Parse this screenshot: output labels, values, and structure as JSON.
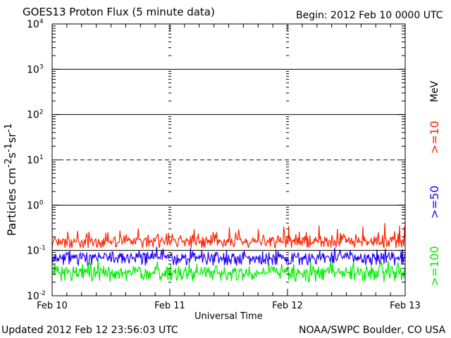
{
  "header": {
    "title": "GOES13 Proton Flux (5 minute data)",
    "begin": "Begin: 2012 Feb 10 0000 UTC"
  },
  "footer": {
    "updated": "Updated 2012 Feb 12 23:56:03 UTC",
    "credit": "NOAA/SWPC Boulder, CO USA"
  },
  "legend": {
    "unit": "MeV",
    "items": [
      {
        "label": ">=10",
        "color": "#ff2200"
      },
      {
        "label": ">=50",
        "color": "#2200ff"
      },
      {
        "label": ">=100",
        "color": "#00ee00"
      }
    ]
  },
  "chart_data": {
    "type": "line",
    "title": "GOES13 Proton Flux (5 minute data)",
    "xlabel": "Universal Time",
    "ylabel": "Particles cm⁻²s⁻¹sr⁻¹",
    "y_scale": "log",
    "ylim": [
      0.01,
      10000
    ],
    "y_ticks": [
      {
        "value": 0.01,
        "base": "10",
        "exp": "-2"
      },
      {
        "value": 0.1,
        "base": "10",
        "exp": "-1"
      },
      {
        "value": 1,
        "base": "10",
        "exp": "0"
      },
      {
        "value": 10,
        "base": "10",
        "exp": "1"
      },
      {
        "value": 100,
        "base": "10",
        "exp": "2"
      },
      {
        "value": 1000,
        "base": "10",
        "exp": "3"
      },
      {
        "value": 10000,
        "base": "10",
        "exp": "4"
      }
    ],
    "x_ticks": [
      "Feb 10",
      "Feb 11",
      "Feb 12",
      "Feb 13"
    ],
    "xlim_days": [
      0,
      3
    ],
    "reference_lines": [
      {
        "value": 10,
        "style": "dashed"
      },
      {
        "value": 1,
        "style": "solid"
      },
      {
        "value": 0.1,
        "style": "solid"
      },
      {
        "value": 100,
        "style": "solid"
      },
      {
        "value": 1000,
        "style": "solid"
      }
    ],
    "series": [
      {
        "name": ">=10 MeV",
        "color": "#ff2200",
        "typical": 0.15,
        "range": [
          0.1,
          0.45
        ]
      },
      {
        "name": ">=50 MeV",
        "color": "#2200ff",
        "typical": 0.065,
        "range": [
          0.04,
          0.13
        ]
      },
      {
        "name": ">=100 MeV",
        "color": "#00ee00",
        "typical": 0.03,
        "range": [
          0.017,
          0.07
        ]
      }
    ]
  }
}
